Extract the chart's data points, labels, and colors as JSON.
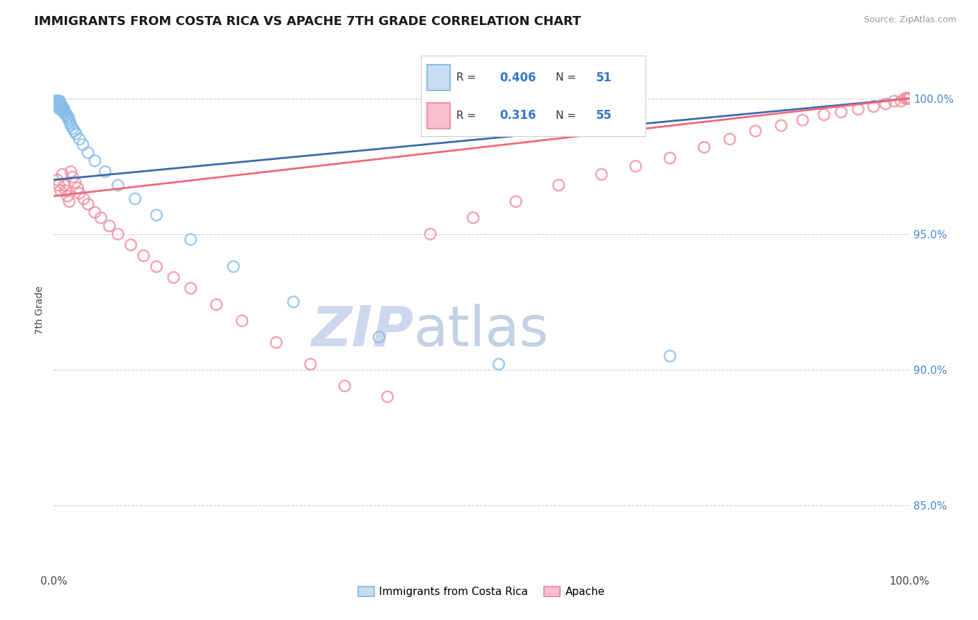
{
  "title": "IMMIGRANTS FROM COSTA RICA VS APACHE 7TH GRADE CORRELATION CHART",
  "source": "Source: ZipAtlas.com",
  "ylabel": "7th Grade",
  "ytick_values": [
    0.85,
    0.9,
    0.95,
    1.0
  ],
  "ytick_labels": [
    "85.0%",
    "90.0%",
    "95.0%",
    "100.0%"
  ],
  "xlim": [
    0.0,
    1.0
  ],
  "ylim": [
    0.826,
    1.018
  ],
  "legend_blue_label": "Immigrants from Costa Rica",
  "legend_pink_label": "Apache",
  "legend_R_blue": "0.406",
  "legend_N_blue": "51",
  "legend_R_pink": "0.316",
  "legend_N_pink": "55",
  "blue_color": "#89bde8",
  "pink_color": "#f090a0",
  "blue_line_color": "#3a6ab0",
  "pink_line_color": "#f06878",
  "blue_scatter_x": [
    0.002,
    0.003,
    0.003,
    0.004,
    0.004,
    0.005,
    0.005,
    0.005,
    0.006,
    0.006,
    0.006,
    0.007,
    0.007,
    0.007,
    0.007,
    0.008,
    0.008,
    0.008,
    0.009,
    0.009,
    0.01,
    0.01,
    0.011,
    0.011,
    0.012,
    0.012,
    0.013,
    0.014,
    0.015,
    0.016,
    0.017,
    0.018,
    0.019,
    0.02,
    0.022,
    0.024,
    0.026,
    0.03,
    0.034,
    0.04,
    0.048,
    0.06,
    0.075,
    0.095,
    0.12,
    0.16,
    0.21,
    0.28,
    0.38,
    0.52,
    0.72
  ],
  "blue_scatter_y": [
    0.999,
    0.998,
    0.999,
    0.998,
    0.997,
    0.999,
    0.998,
    0.997,
    0.999,
    0.998,
    0.997,
    0.999,
    0.998,
    0.997,
    0.996,
    0.998,
    0.997,
    0.996,
    0.997,
    0.996,
    0.997,
    0.996,
    0.996,
    0.995,
    0.996,
    0.995,
    0.995,
    0.994,
    0.994,
    0.993,
    0.993,
    0.992,
    0.991,
    0.99,
    0.989,
    0.988,
    0.987,
    0.985,
    0.983,
    0.98,
    0.977,
    0.973,
    0.968,
    0.963,
    0.957,
    0.948,
    0.938,
    0.925,
    0.912,
    0.902,
    0.905
  ],
  "pink_scatter_x": [
    0.004,
    0.006,
    0.008,
    0.01,
    0.012,
    0.014,
    0.016,
    0.018,
    0.02,
    0.022,
    0.025,
    0.028,
    0.03,
    0.035,
    0.04,
    0.048,
    0.055,
    0.065,
    0.075,
    0.09,
    0.105,
    0.12,
    0.14,
    0.16,
    0.19,
    0.22,
    0.26,
    0.3,
    0.34,
    0.39,
    0.44,
    0.49,
    0.54,
    0.59,
    0.64,
    0.68,
    0.72,
    0.76,
    0.79,
    0.82,
    0.85,
    0.875,
    0.9,
    0.92,
    0.94,
    0.958,
    0.972,
    0.982,
    0.99,
    0.995,
    0.997,
    0.998,
    0.999,
    0.999,
    1.0
  ],
  "pink_scatter_y": [
    0.97,
    0.968,
    0.966,
    0.972,
    0.968,
    0.966,
    0.964,
    0.962,
    0.973,
    0.971,
    0.969,
    0.967,
    0.965,
    0.963,
    0.961,
    0.958,
    0.956,
    0.953,
    0.95,
    0.946,
    0.942,
    0.938,
    0.934,
    0.93,
    0.924,
    0.918,
    0.91,
    0.902,
    0.894,
    0.89,
    0.95,
    0.956,
    0.962,
    0.968,
    0.972,
    0.975,
    0.978,
    0.982,
    0.985,
    0.988,
    0.99,
    0.992,
    0.994,
    0.995,
    0.996,
    0.997,
    0.998,
    0.999,
    0.999,
    1.0,
    1.0,
    1.0,
    1.0,
    1.0,
    1.0
  ],
  "blue_line_x0": 0.0,
  "blue_line_x1": 1.0,
  "blue_line_y0": 0.97,
  "blue_line_y1": 1.0,
  "pink_line_x0": 0.0,
  "pink_line_x1": 1.0,
  "pink_line_y0": 0.964,
  "pink_line_y1": 1.0
}
